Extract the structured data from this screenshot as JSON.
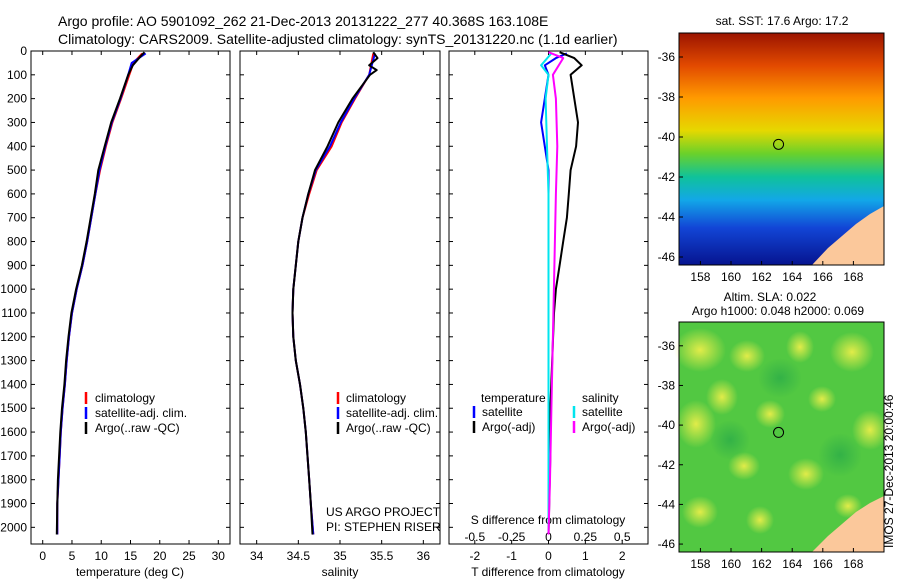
{
  "header": {
    "line1": "Argo profile: AO 5901092_262 21-Dec-2013 20131222_277 40.368S 163.108E",
    "line2": "Climatology: CARS2009. Satellite-adjusted climatology: synTS_20131220.nc (1.1d earlier)"
  },
  "colors": {
    "climatology": "#ff0000",
    "satellite": "#0000ff",
    "argo": "#000000",
    "sal_satellite": "#00e5ee",
    "sal_argo": "#ff00ff",
    "land": "#fbc89b"
  },
  "legend_profile": {
    "climatology": "climatology",
    "satellite": "satellite-adj. clim.",
    "argo": "Argo(..raw -QC)"
  },
  "legend_diff": {
    "t_header": "temperature",
    "s_header": "salinity",
    "satellite": "satellite",
    "argo": "Argo(-adj)"
  },
  "credits": {
    "project": "US ARGO PROJECT",
    "pi": "PI: STEPHEN RISER"
  },
  "maps": {
    "sst_title": "sat. SST: 17.6 Argo: 17.2",
    "sla_title1": "Altim. SLA: 0.022",
    "sla_title2": "Argo h1000: 0.048 h2000: 0.069",
    "lat_ticks": [
      -36,
      -38,
      -40,
      -42,
      -44,
      -46
    ],
    "lon_ticks": [
      158,
      160,
      162,
      164,
      166,
      168
    ],
    "profile_position": {
      "lat": -40.368,
      "lon": 163.108
    },
    "timestamp": "IMOS 27-Dec-2013 20:00:46"
  },
  "chart_data": [
    {
      "type": "line",
      "name": "temperature",
      "xlabel": "temperature (deg C)",
      "ylabel": "",
      "xlim": [
        -2,
        32
      ],
      "ylim": [
        2070,
        0
      ],
      "xticks": [
        0,
        5,
        10,
        15,
        20,
        25,
        30
      ],
      "yticks": [
        0,
        100,
        200,
        300,
        400,
        500,
        600,
        700,
        800,
        900,
        1000,
        1100,
        1200,
        1300,
        1400,
        1500,
        1600,
        1700,
        1800,
        1900,
        2000
      ],
      "series": [
        {
          "name": "climatology",
          "color": "#ff0000",
          "x": [
            17.0,
            15.5,
            14.8,
            13.4,
            11.9,
            10.8,
            9.8,
            9.0,
            8.3,
            7.6,
            6.8,
            5.8,
            5.0,
            4.5,
            4.1,
            3.8,
            3.4,
            3.1,
            2.9,
            2.7,
            2.5,
            2.5
          ],
          "y": [
            10,
            50,
            100,
            200,
            300,
            400,
            500,
            600,
            700,
            800,
            900,
            1000,
            1100,
            1200,
            1300,
            1400,
            1500,
            1600,
            1700,
            1800,
            1900,
            2030
          ]
        },
        {
          "name": "satellite-adj. clim.",
          "color": "#0000ff",
          "x": [
            17.6,
            15.2,
            14.6,
            13.3,
            11.8,
            10.7,
            9.7,
            9.0,
            8.3,
            7.6,
            6.8,
            5.8,
            5.0,
            4.5,
            4.1,
            3.8,
            3.4,
            3.1,
            2.9,
            2.7,
            2.5,
            2.5
          ],
          "y": [
            10,
            50,
            100,
            200,
            300,
            400,
            500,
            600,
            700,
            800,
            900,
            1000,
            1100,
            1200,
            1300,
            1400,
            1500,
            1600,
            1700,
            1800,
            1900,
            2030
          ]
        },
        {
          "name": "Argo(..raw -QC)",
          "color": "#000000",
          "x": [
            17.4,
            16.8,
            15.4,
            14.6,
            13.2,
            11.7,
            10.6,
            9.5,
            8.9,
            8.2,
            7.5,
            6.7,
            5.7,
            4.9,
            4.4,
            4.0,
            3.7,
            3.3,
            3.0,
            2.8,
            2.6,
            2.5,
            2.4
          ],
          "y": [
            5,
            20,
            60,
            100,
            200,
            300,
            400,
            500,
            600,
            700,
            800,
            900,
            1000,
            1100,
            1200,
            1300,
            1400,
            1500,
            1600,
            1700,
            1800,
            1900,
            2030
          ]
        }
      ]
    },
    {
      "type": "line",
      "name": "salinity",
      "xlabel": "salinity",
      "ylabel": "",
      "xlim": [
        33.8,
        36.2
      ],
      "ylim": [
        2070,
        0
      ],
      "xticks": [
        34,
        34.5,
        35,
        35.5,
        36
      ],
      "xtick_labels": [
        "34",
        "34.5",
        "35",
        "35.5",
        "36"
      ],
      "series": [
        {
          "name": "climatology",
          "color": "#ff0000",
          "x": [
            35.4,
            35.35,
            35.18,
            35.02,
            34.9,
            34.72,
            34.63,
            34.55,
            34.5,
            34.47,
            34.44,
            34.43,
            34.44,
            34.47,
            34.52,
            34.56,
            34.59,
            34.61,
            34.63,
            34.65,
            34.68
          ],
          "y": [
            10,
            100,
            200,
            300,
            400,
            500,
            600,
            700,
            800,
            900,
            1000,
            1100,
            1200,
            1300,
            1400,
            1500,
            1600,
            1700,
            1800,
            1900,
            2030
          ]
        },
        {
          "name": "satellite-adj. clim.",
          "color": "#0000ff",
          "x": [
            35.42,
            35.35,
            35.17,
            35.01,
            34.88,
            34.71,
            34.62,
            34.55,
            34.5,
            34.47,
            34.44,
            34.43,
            34.44,
            34.47,
            34.52,
            34.56,
            34.59,
            34.61,
            34.63,
            34.65,
            34.68
          ],
          "y": [
            10,
            100,
            200,
            300,
            400,
            500,
            600,
            700,
            800,
            900,
            1000,
            1100,
            1200,
            1300,
            1400,
            1500,
            1600,
            1700,
            1800,
            1900,
            2030
          ]
        },
        {
          "name": "Argo(..raw -QC)",
          "color": "#000000",
          "x": [
            35.4,
            35.45,
            35.35,
            35.44,
            35.36,
            35.15,
            34.98,
            34.85,
            34.7,
            34.62,
            34.55,
            34.5,
            34.47,
            34.44,
            34.43,
            34.44,
            34.47,
            34.52,
            34.56,
            34.59,
            34.61,
            34.63,
            34.65,
            34.67
          ],
          "y": [
            5,
            30,
            60,
            80,
            100,
            200,
            300,
            400,
            500,
            600,
            700,
            800,
            900,
            1000,
            1100,
            1200,
            1300,
            1400,
            1500,
            1600,
            1700,
            1800,
            1900,
            2030
          ]
        }
      ]
    },
    {
      "type": "line",
      "name": "difference from climatology",
      "xlabel_top": "S difference from climatology",
      "xlabel": "T difference from climatology",
      "xlim": [
        -2.7,
        2.7
      ],
      "ylim": [
        2070,
        0
      ],
      "xticks": [
        -2,
        -1,
        0,
        1,
        2
      ],
      "s_xticks": [
        -0.5,
        -0.25,
        0,
        0.25,
        0.5
      ],
      "series": [
        {
          "name": "temperature satellite",
          "color": "#0000ff",
          "x": [
            0.5,
            0.2,
            -0.1,
            0.0,
            -0.1,
            -0.2,
            -0.1,
            0.0,
            0.0,
            0.0,
            0.0,
            0.0,
            0.0,
            0.0,
            0.0
          ],
          "y": [
            10,
            30,
            60,
            100,
            200,
            300,
            400,
            500,
            700,
            900,
            1100,
            1300,
            1500,
            1700,
            2030
          ]
        },
        {
          "name": "temperature Argo(-adj)",
          "color": "#000000",
          "x": [
            0.3,
            0.7,
            0.9,
            0.6,
            0.7,
            0.8,
            0.75,
            0.6,
            0.55,
            0.5,
            0.4,
            0.3,
            0.2,
            0.15,
            0.1,
            0.05,
            0.05,
            0.0
          ],
          "y": [
            5,
            30,
            60,
            100,
            200,
            300,
            400,
            500,
            600,
            700,
            800,
            900,
            1000,
            1100,
            1300,
            1500,
            1700,
            2030
          ]
        },
        {
          "name": "salinity satellite",
          "color": "#00e5ee",
          "x": [
            0.02,
            -0.05,
            0.0,
            -0.02,
            -0.01,
            0.0,
            0.0,
            0.0,
            0.0,
            0.0
          ],
          "y": [
            10,
            60,
            100,
            200,
            400,
            600,
            900,
            1200,
            1600,
            2030
          ]
        },
        {
          "name": "salinity Argo(-adj)",
          "color": "#ff00ff",
          "x": [
            0.0,
            0.1,
            0.03,
            0.05,
            0.06,
            0.05,
            0.04,
            0.03,
            0.02,
            0.01,
            0.0
          ],
          "y": [
            5,
            30,
            100,
            200,
            400,
            600,
            900,
            1200,
            1500,
            1800,
            2030
          ]
        }
      ]
    }
  ]
}
